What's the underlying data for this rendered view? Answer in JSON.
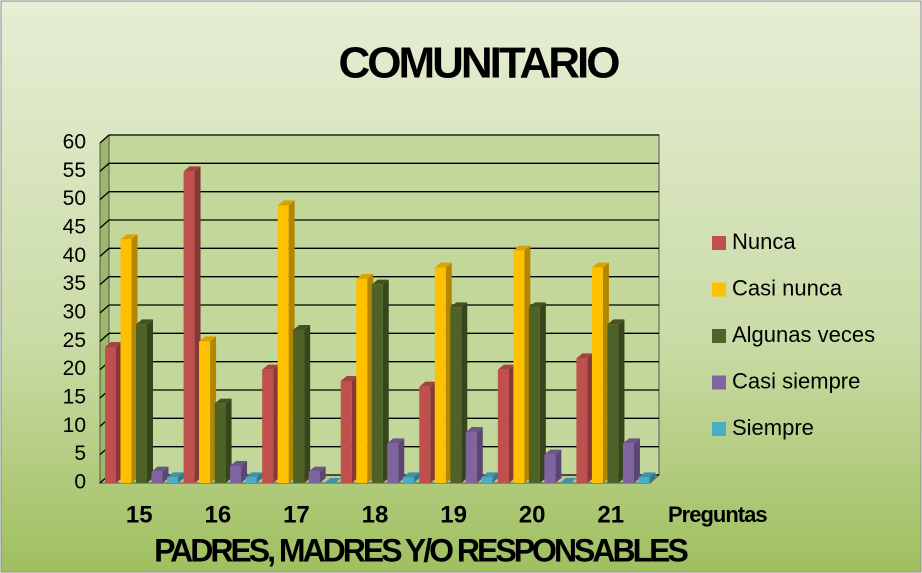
{
  "chart_data": {
    "type": "bar3d",
    "title": "COMUNITARIO",
    "x_label": "Preguntas",
    "subtitle": "PADRES, MADRES Y/O RESPONSABLES",
    "categories": [
      "15",
      "16",
      "17",
      "18",
      "19",
      "20",
      "21"
    ],
    "series": [
      {
        "name": "Nunca",
        "color": "#c0504d",
        "values": [
          24,
          55,
          20,
          18,
          17,
          20,
          22
        ]
      },
      {
        "name": "Casi nunca",
        "color": "#ffc000",
        "values": [
          43,
          25,
          49,
          36,
          38,
          41,
          38
        ]
      },
      {
        "name": "Algunas veces",
        "color": "#4f6228",
        "values": [
          28,
          14,
          27,
          35,
          31,
          31,
          28
        ]
      },
      {
        "name": "Casi siempre",
        "color": "#8064a2",
        "values": [
          2,
          3,
          2,
          7,
          9,
          5,
          7
        ]
      },
      {
        "name": "Siempre",
        "color": "#4bacc6",
        "values": [
          1,
          1,
          0,
          1,
          1,
          0,
          1
        ]
      }
    ],
    "ylim": [
      0,
      60
    ],
    "yticks": [
      0,
      5,
      10,
      15,
      20,
      25,
      30,
      35,
      40,
      45,
      50,
      55,
      60
    ],
    "grid": true,
    "legend": "right"
  }
}
